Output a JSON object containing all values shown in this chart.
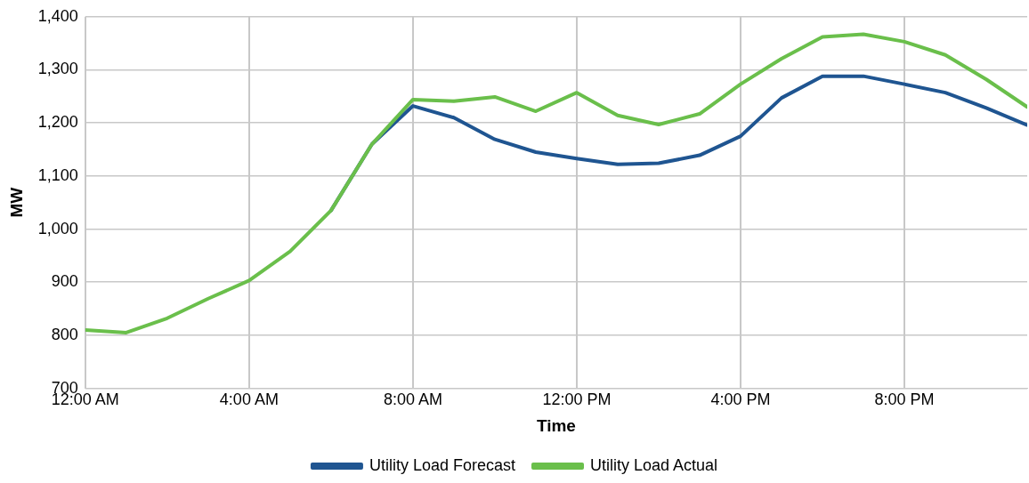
{
  "chart_data": {
    "type": "line",
    "xlabel": "Time",
    "ylabel": "MW",
    "x": [
      0,
      1,
      2,
      3,
      4,
      5,
      6,
      7,
      8,
      9,
      10,
      11,
      12,
      13,
      14,
      15,
      16,
      17,
      18,
      19,
      20,
      21,
      22,
      23
    ],
    "xlim": [
      0,
      23
    ],
    "xticks": [
      {
        "value": 0,
        "label": "12:00 AM"
      },
      {
        "value": 4,
        "label": "4:00 AM"
      },
      {
        "value": 8,
        "label": "8:00 AM"
      },
      {
        "value": 12,
        "label": "12:00 PM"
      },
      {
        "value": 16,
        "label": "4:00 PM"
      },
      {
        "value": 20,
        "label": "8:00 PM"
      }
    ],
    "ylim": [
      700,
      1400
    ],
    "yticks": [
      {
        "value": 700,
        "label": "700"
      },
      {
        "value": 800,
        "label": "800"
      },
      {
        "value": 900,
        "label": "900"
      },
      {
        "value": 1000,
        "label": "1,000"
      },
      {
        "value": 1100,
        "label": "1,100"
      },
      {
        "value": 1200,
        "label": "1,200"
      },
      {
        "value": 1300,
        "label": "1,300"
      },
      {
        "value": 1400,
        "label": "1,400"
      }
    ],
    "grid": true,
    "legend": "bottom",
    "marker": "none",
    "line_style": "solid",
    "series": [
      {
        "name": "Utility Load Forecast",
        "color": "#1f5591",
        "values": [
          null,
          null,
          null,
          null,
          null,
          null,
          1035,
          1160,
          1232,
          1210,
          1169,
          1145,
          1133,
          1122,
          1124,
          1139,
          1175,
          1247,
          1288,
          1288,
          1273,
          1257,
          1228,
          1196
        ]
      },
      {
        "name": "Utility Load Actual",
        "color": "#6abf4b",
        "values": [
          810,
          805,
          832,
          869,
          903,
          958,
          1035,
          1160,
          1244,
          1241,
          1249,
          1222,
          1257,
          1214,
          1197,
          1217,
          1273,
          1321,
          1362,
          1367,
          1353,
          1328,
          1282,
          1230
        ]
      }
    ]
  }
}
